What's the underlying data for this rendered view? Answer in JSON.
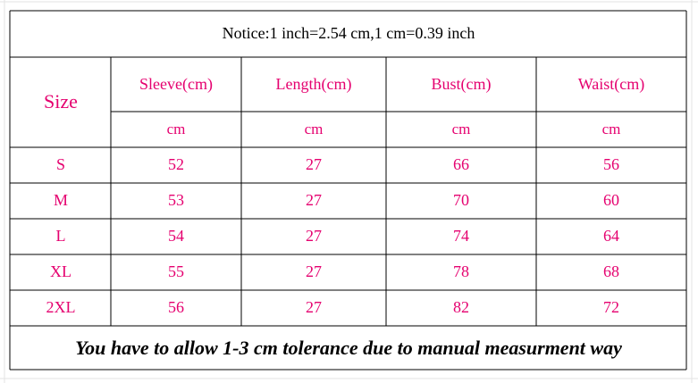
{
  "notice": "Notice:1 inch=2.54 cm,1 cm=0.39 inch",
  "table": {
    "size_header": "Size",
    "columns": [
      "Sleeve(cm)",
      "Length(cm)",
      "Bust(cm)",
      "Waist(cm)"
    ],
    "units": [
      "cm",
      "cm",
      "cm",
      "cm"
    ],
    "rows": [
      [
        "S",
        52,
        27,
        66,
        56
      ],
      [
        "M",
        53,
        27,
        70,
        60
      ],
      [
        "L",
        54,
        27,
        74,
        64
      ],
      [
        "XL",
        55,
        27,
        78,
        68
      ],
      [
        "2XL",
        56,
        27,
        82,
        72
      ]
    ]
  },
  "footer": "You have to allow 1-3 cm tolerance due to manual measurment way"
}
